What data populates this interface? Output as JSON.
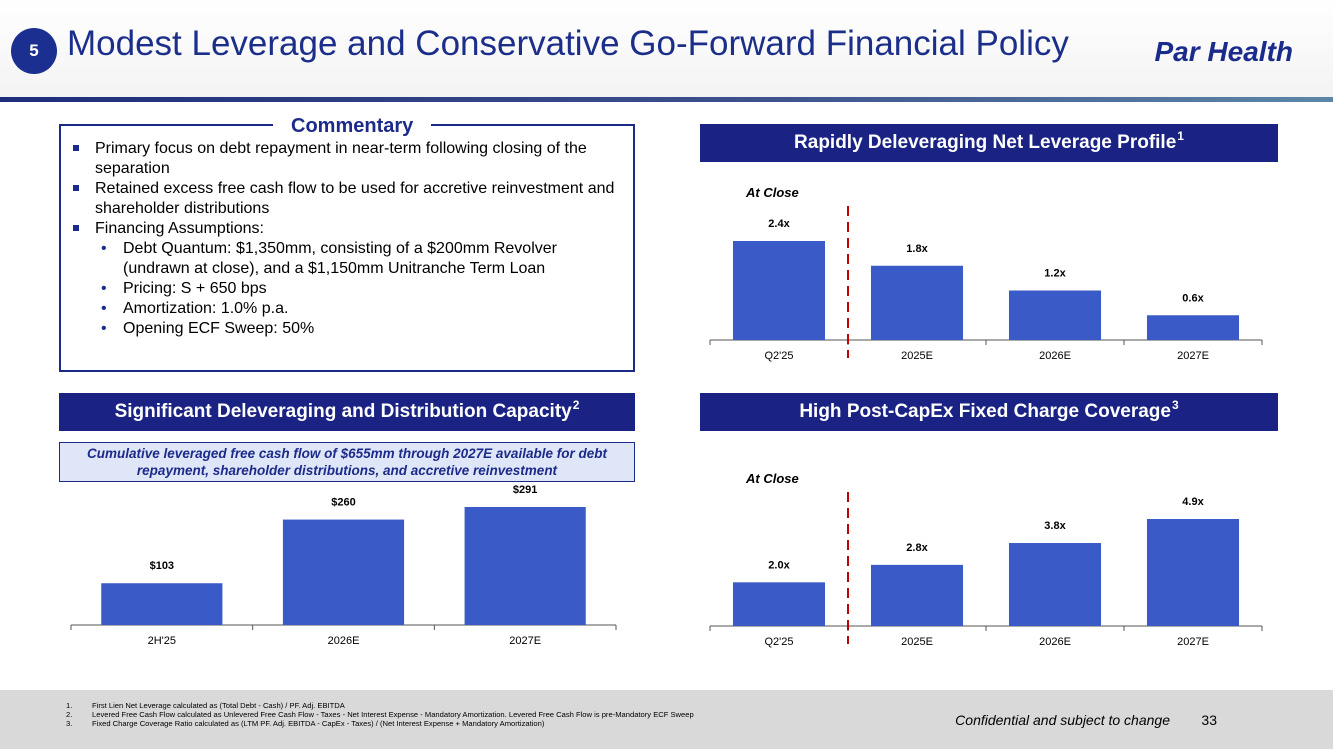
{
  "header": {
    "section_number": "5",
    "title": "Modest Leverage and Conservative Go-Forward Financial Policy",
    "brand": "Par Health"
  },
  "commentary": {
    "title": "Commentary",
    "bullets": [
      "Primary focus on debt repayment in near-term following closing of the separation",
      "Retained excess free cash flow to be used for accretive reinvestment and shareholder distributions",
      "Financing Assumptions:"
    ],
    "sub_bullets": [
      "Debt Quantum: $1,350mm, consisting of a $200mm Revolver (undrawn at close), and a $1,150mm Unitranche Term Loan",
      "Pricing: S + 650 bps",
      "Amortization: 1.0% p.a.",
      "Opening ECF Sweep: 50%"
    ]
  },
  "sections": {
    "cash_flow": {
      "title": "Significant Deleveraging and Distribution Capacity",
      "sup": "2"
    },
    "leverage": {
      "title": "Rapidly Deleveraging Net Leverage Profile",
      "sup": "1"
    },
    "coverage": {
      "title": "High Post-CapEx Fixed Charge Coverage",
      "sup": "3"
    }
  },
  "cash_flow_note": "Cumulative leveraged free cash flow of $655mm through 2027E available for debt repayment, shareholder distributions, and accretive reinvestment",
  "chart_data": [
    {
      "id": "leverage",
      "type": "bar",
      "title": "Rapidly Deleveraging Net Leverage Profile",
      "annotation": "At Close",
      "categories": [
        "Q2'25",
        "2025E",
        "2026E",
        "2027E"
      ],
      "values": [
        2.4,
        1.8,
        1.2,
        0.6
      ],
      "labels": [
        "2.4x",
        "1.8x",
        "1.2x",
        "0.6x"
      ],
      "ylim": [
        0,
        2.4
      ]
    },
    {
      "id": "coverage",
      "type": "bar",
      "title": "High Post-CapEx Fixed Charge Coverage",
      "annotation": "At Close",
      "categories": [
        "Q2'25",
        "2025E",
        "2026E",
        "2027E"
      ],
      "values": [
        2.0,
        2.8,
        3.8,
        4.9
      ],
      "labels": [
        "2.0x",
        "2.8x",
        "3.8x",
        "4.9x"
      ],
      "ylim": [
        0,
        4.9
      ]
    },
    {
      "id": "cashflow",
      "type": "bar",
      "title": "Significant Deleveraging and Distribution Capacity",
      "categories": [
        "2H'25",
        "2026E",
        "2027E"
      ],
      "values": [
        103,
        260,
        291
      ],
      "labels": [
        "$103",
        "$260",
        "$291"
      ],
      "ylim": [
        0,
        291
      ]
    }
  ],
  "footer": {
    "footnotes": [
      {
        "num": "1.",
        "text": "First Lien Net Leverage calculated as (Total Debt - Cash) / PF. Adj. EBITDA"
      },
      {
        "num": "2.",
        "text": "Levered Free Cash Flow calculated as Unlevered Free Cash Flow - Taxes - Net Interest Expense - Mandatory Amortization. Levered Free Cash Flow is pre-Mandatory ECF Sweep"
      },
      {
        "num": "3.",
        "text": "Fixed Charge Coverage Ratio calculated as (LTM PF. Adj. EBITDA - CapEx - Taxes) / (Net Interest Expense + Mandatory Amortization)"
      }
    ],
    "confidential": "Confidential and subject to change",
    "page_number": "33"
  }
}
